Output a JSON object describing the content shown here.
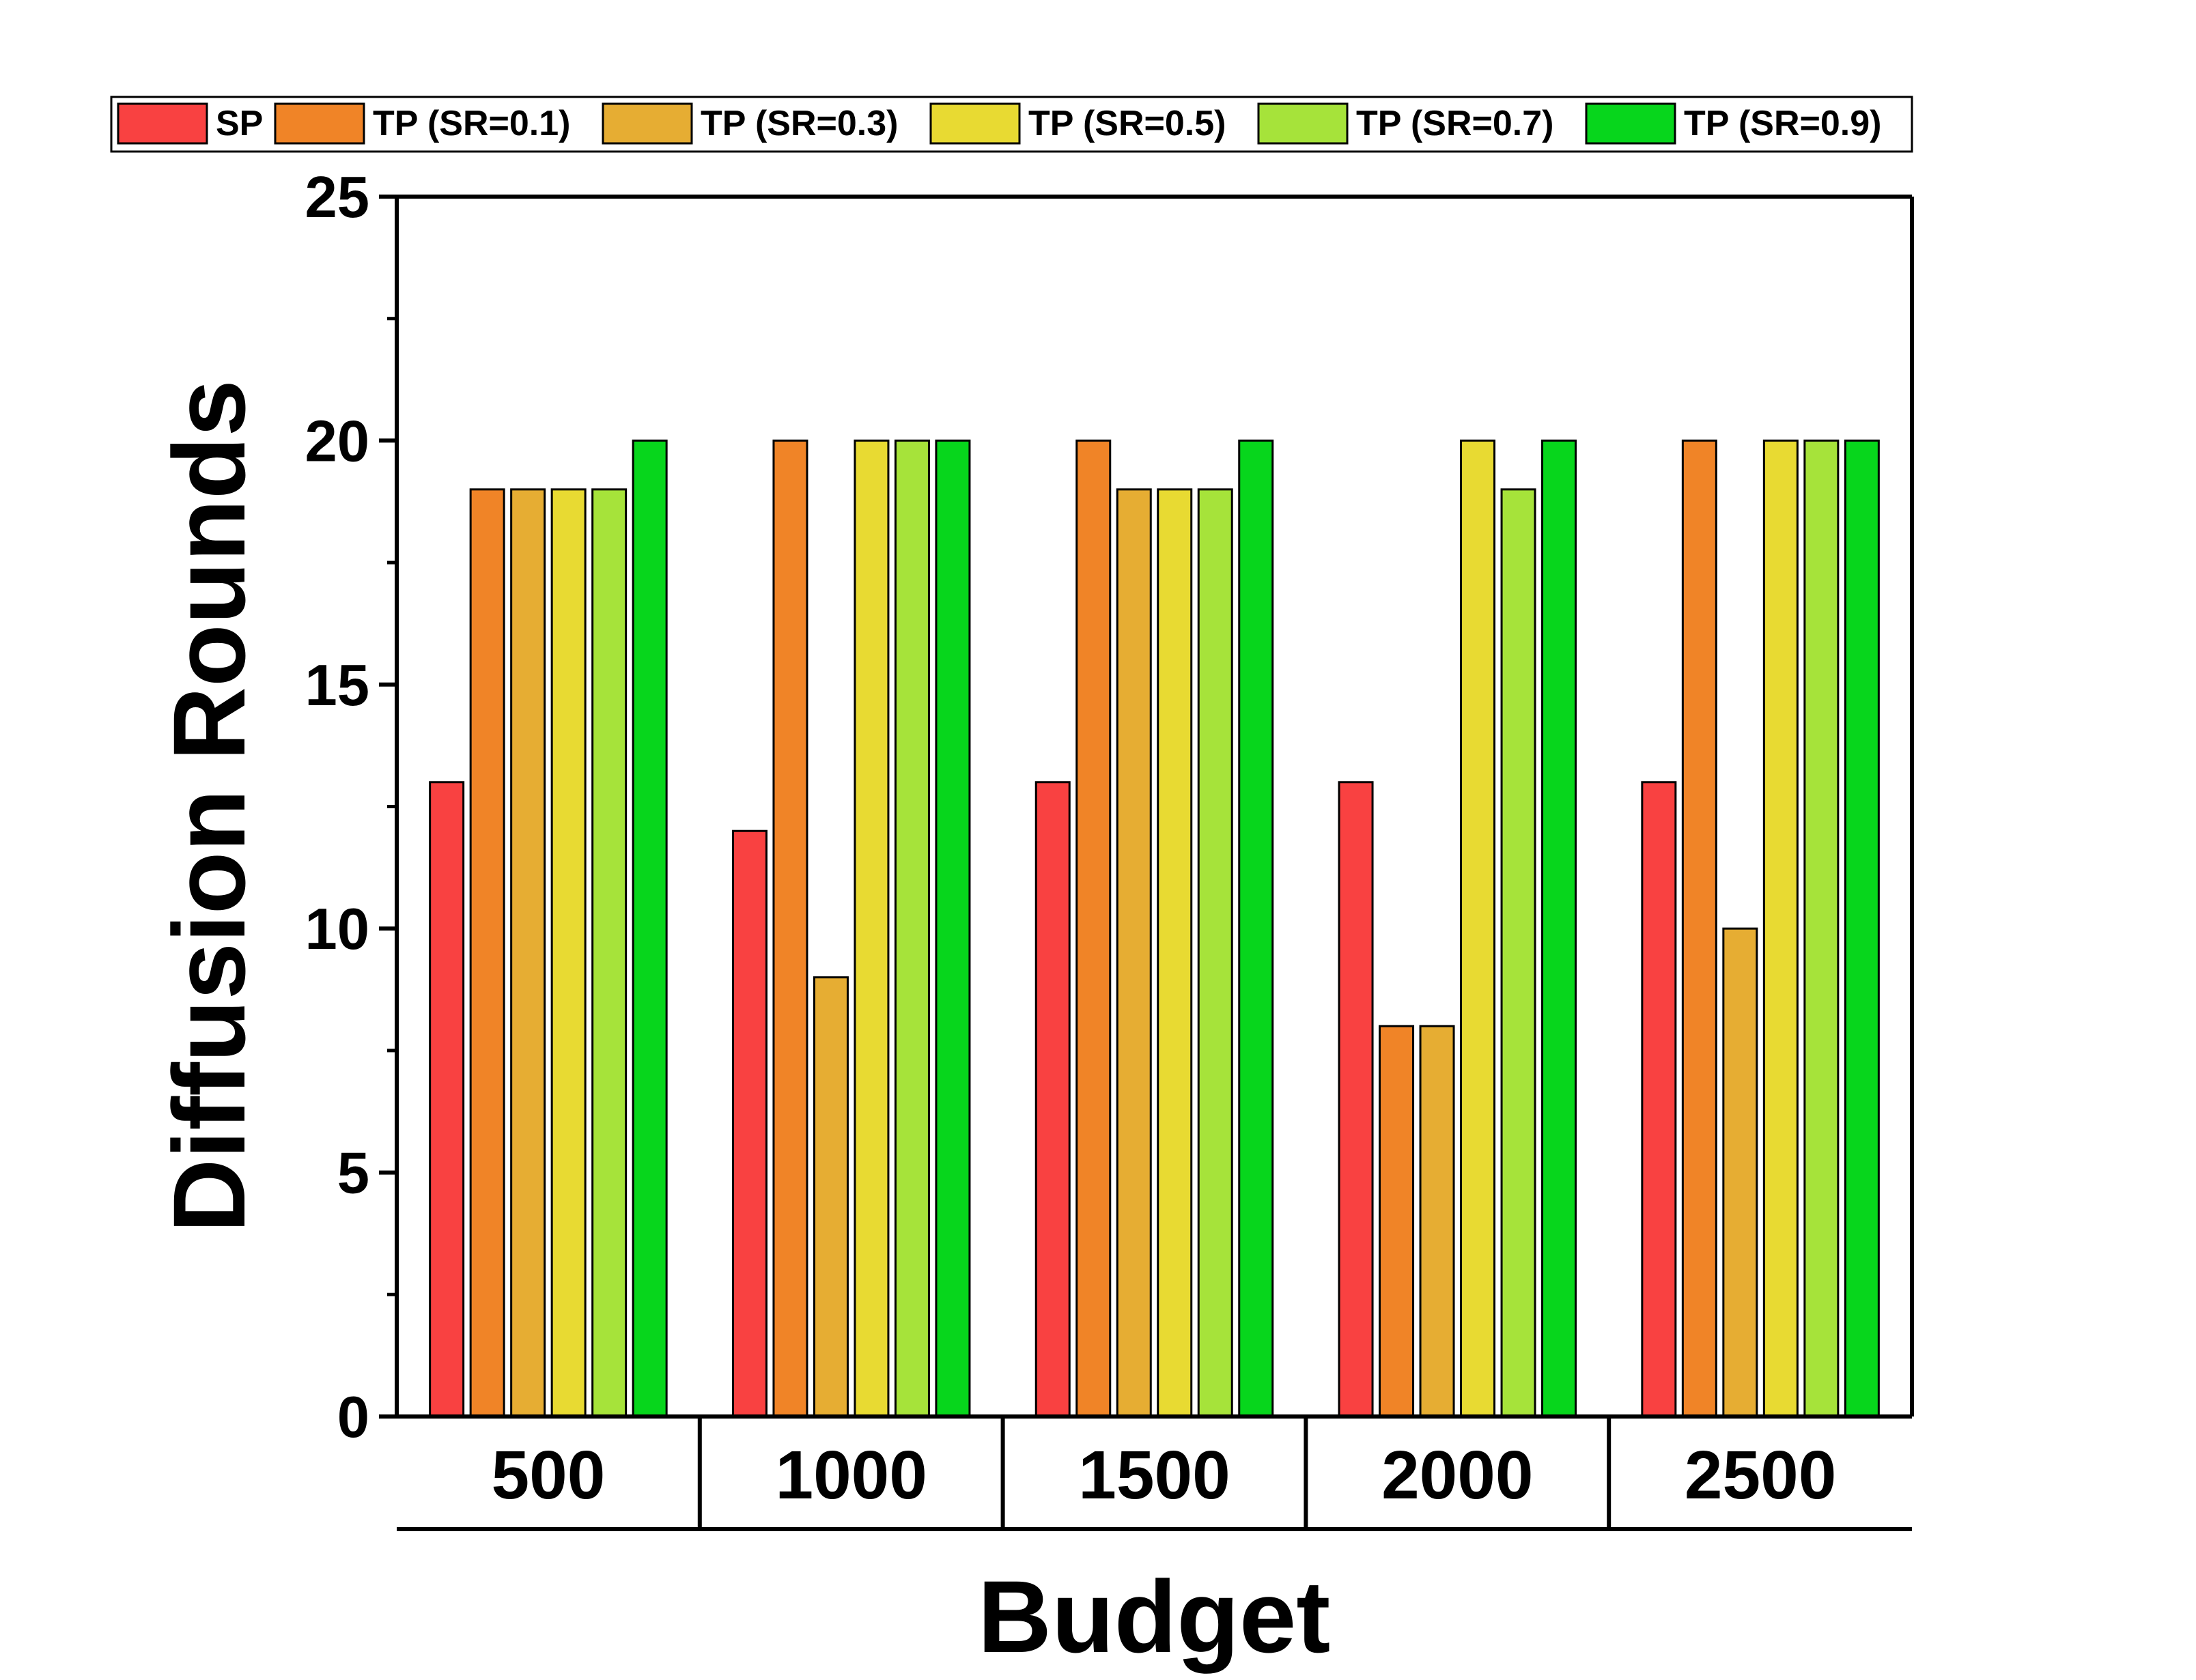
{
  "chart_data": {
    "type": "bar",
    "title": "",
    "xlabel": "Budget",
    "ylabel": "Diffusion Rounds",
    "categories": [
      "500",
      "1000",
      "1500",
      "2000",
      "2500"
    ],
    "ylim": [
      0,
      25
    ],
    "yticks": [
      0,
      5,
      10,
      15,
      20,
      25
    ],
    "legend_position": "top",
    "grid": false,
    "series": [
      {
        "name": "SP",
        "color": "#f94141",
        "values": [
          13,
          12,
          13,
          13,
          13
        ]
      },
      {
        "name": "TP (SR=0.1)",
        "color": "#f08427",
        "values": [
          19,
          20,
          20,
          8,
          20
        ]
      },
      {
        "name": "TP (SR=0.3)",
        "color": "#e6ad33",
        "values": [
          19,
          9,
          19,
          8,
          10
        ]
      },
      {
        "name": "TP (SR=0.5)",
        "color": "#e8da32",
        "values": [
          19,
          20,
          19,
          20,
          20
        ]
      },
      {
        "name": "TP (SR=0.7)",
        "color": "#a6e33a",
        "values": [
          19,
          20,
          19,
          19,
          20
        ]
      },
      {
        "name": "TP (SR=0.9)",
        "color": "#07d61c",
        "values": [
          20,
          20,
          20,
          20,
          20
        ]
      }
    ]
  }
}
